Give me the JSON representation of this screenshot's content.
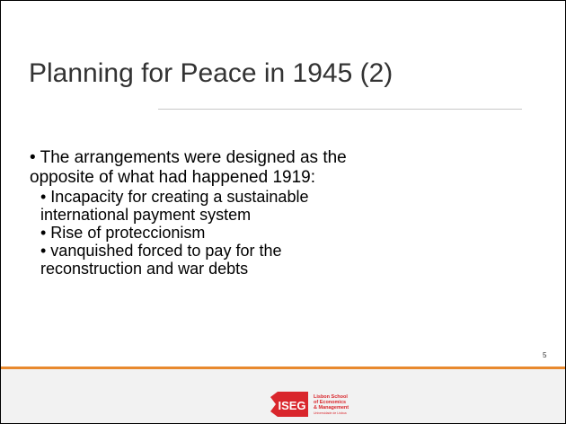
{
  "title": "Planning for Peace in 1945 (2)",
  "bullets": [
    {
      "text": "• The arrangements were designed as the opposite of what had happened 1919:",
      "sub": [
        "• Incapacity for creating a sustainable international payment system",
        "• Rise of proteccionism",
        "• vanquished forced to pay for the reconstruction and war debts"
      ]
    }
  ],
  "slide_number": "5",
  "logo": {
    "mark": "ISEG",
    "lines": [
      "Lisbon School",
      "of Economics",
      "& Management",
      "Universidade de Lisboa"
    ]
  }
}
